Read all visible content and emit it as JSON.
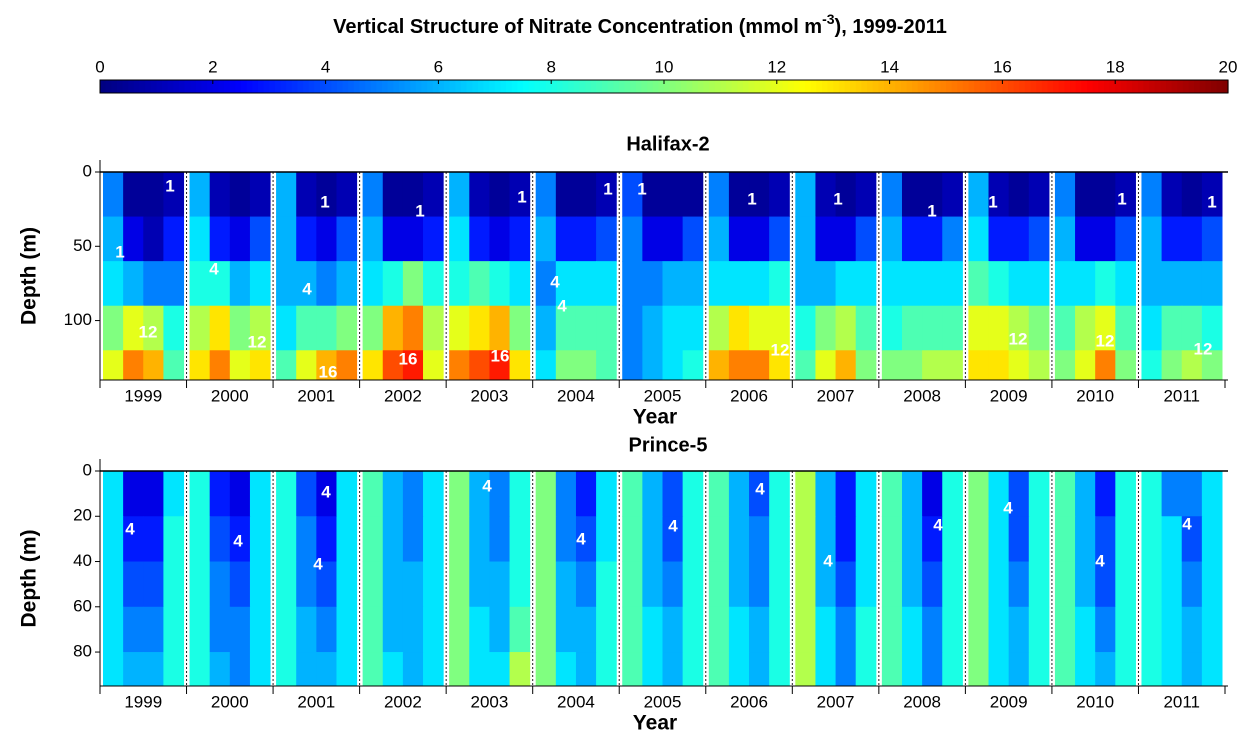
{
  "chart_data": {
    "type": "heatmap",
    "title": [
      "Vertical Structure  of Nitrate Concentration (mmol m",
      "-3",
      "), 1999-2011"
    ],
    "colormap": "jet",
    "colorbar": {
      "clim": [
        0,
        20
      ],
      "ticks": [
        0,
        2,
        4,
        6,
        8,
        10,
        12,
        14,
        16,
        18,
        20
      ]
    },
    "panels": [
      {
        "title": "Halifax-2",
        "xlabel": "Year",
        "ylabel": "Depth (m)",
        "categories": [
          "1999",
          "2000",
          "2001",
          "2002",
          "2003",
          "2004",
          "2005",
          "2006",
          "2007",
          "2008",
          "2009",
          "2010",
          "2011"
        ],
        "ylim": [
          0,
          140
        ],
        "yticks": [
          0,
          50,
          100
        ],
        "y_inverted": true,
        "depth_bins": [
          0,
          30,
          60,
          90,
          120,
          140
        ],
        "values": [
          [
            [
              5,
              0.5,
              0.5,
              1
            ],
            [
              6,
              2,
              1,
              3
            ],
            [
              7,
              6,
              5,
              5
            ],
            [
              10,
              12,
              11,
              8
            ],
            [
              12,
              15,
              14,
              9
            ]
          ],
          [
            [
              6,
              1,
              0.5,
              1
            ],
            [
              7,
              3,
              2,
              4
            ],
            [
              8,
              8,
              6,
              7
            ],
            [
              11,
              13,
              10,
              11
            ],
            [
              13,
              15,
              12,
              13
            ]
          ],
          [
            [
              6,
              1,
              0.5,
              1
            ],
            [
              6,
              3,
              2,
              4
            ],
            [
              6,
              6,
              5,
              6
            ],
            [
              7,
              9,
              9,
              10
            ],
            [
              9,
              12,
              14,
              15
            ]
          ],
          [
            [
              5,
              0.5,
              0.5,
              1
            ],
            [
              6,
              2,
              2,
              3
            ],
            [
              7,
              8,
              10,
              8
            ],
            [
              10,
              14,
              15,
              11
            ],
            [
              13,
              16,
              17,
              12
            ]
          ],
          [
            [
              6,
              1,
              0.5,
              1
            ],
            [
              7,
              3,
              2,
              3
            ],
            [
              8,
              9,
              8,
              7
            ],
            [
              12,
              13,
              14,
              10
            ],
            [
              15,
              16,
              17,
              13
            ]
          ],
          [
            [
              5,
              0.5,
              0.5,
              1
            ],
            [
              6,
              3,
              3,
              4
            ],
            [
              5,
              7,
              7,
              7
            ],
            [
              6,
              9,
              9,
              9
            ],
            [
              7,
              10,
              10,
              9
            ]
          ],
          [
            [
              4,
              0.5,
              0.5,
              0.5
            ],
            [
              5,
              2,
              2,
              4
            ],
            [
              5,
              5,
              6,
              6
            ],
            [
              5,
              6,
              7,
              7
            ],
            [
              5,
              6,
              7,
              8
            ]
          ],
          [
            [
              5,
              0.5,
              0.5,
              1
            ],
            [
              6,
              2,
              2,
              4
            ],
            [
              7,
              7,
              7,
              8
            ],
            [
              11,
              13,
              12,
              12
            ],
            [
              14,
              15,
              15,
              13
            ]
          ],
          [
            [
              6,
              1,
              0.5,
              1
            ],
            [
              6,
              2,
              2,
              4
            ],
            [
              6,
              6,
              7,
              7
            ],
            [
              8,
              10,
              11,
              9
            ],
            [
              9,
              12,
              14,
              10
            ]
          ],
          [
            [
              5,
              0.5,
              0.5,
              1
            ],
            [
              6,
              3,
              3,
              5
            ],
            [
              7,
              7,
              7,
              7
            ],
            [
              8,
              9,
              9,
              9
            ],
            [
              10,
              10,
              11,
              11
            ]
          ],
          [
            [
              6,
              1,
              0.5,
              1
            ],
            [
              7,
              3,
              3,
              4
            ],
            [
              9,
              8,
              7,
              7
            ],
            [
              12,
              12,
              11,
              10
            ],
            [
              13,
              13,
              12,
              11
            ]
          ],
          [
            [
              5,
              0.5,
              0.5,
              1
            ],
            [
              6,
              2,
              2,
              4
            ],
            [
              7,
              7,
              8,
              7
            ],
            [
              9,
              11,
              12,
              9
            ],
            [
              10,
              12,
              15,
              10
            ]
          ],
          [
            [
              5,
              1,
              0.5,
              1
            ],
            [
              6,
              3,
              3,
              4
            ],
            [
              6,
              6,
              6,
              6
            ],
            [
              7,
              9,
              9,
              8
            ],
            [
              8,
              10,
              11,
              10
            ]
          ]
        ],
        "contour_labels": [
          1,
          1,
          12,
          4,
          12,
          1,
          4,
          16,
          1,
          16,
          1,
          16,
          1,
          4,
          4,
          1,
          12,
          1,
          1,
          1,
          12,
          1,
          1,
          12,
          1,
          12
        ]
      },
      {
        "title": "Prince-5",
        "xlabel": "Year",
        "ylabel": "Depth (m)",
        "categories": [
          "1999",
          "2000",
          "2001",
          "2002",
          "2003",
          "2004",
          "2005",
          "2006",
          "2007",
          "2008",
          "2009",
          "2010",
          "2011"
        ],
        "ylim": [
          0,
          95
        ],
        "yticks": [
          0,
          20,
          40,
          60,
          80
        ],
        "y_inverted": true,
        "depth_bins": [
          0,
          20,
          40,
          60,
          80,
          95
        ],
        "values": [
          [
            [
              7,
              2,
              2,
              7
            ],
            [
              7,
              3,
              3,
              8
            ],
            [
              7,
              4,
              4,
              8
            ],
            [
              7,
              5,
              5,
              8
            ],
            [
              7,
              6,
              6,
              8
            ]
          ],
          [
            [
              8,
              3,
              2,
              7
            ],
            [
              8,
              4,
              3,
              7
            ],
            [
              8,
              5,
              4,
              7
            ],
            [
              8,
              5,
              5,
              7
            ],
            [
              8,
              6,
              5,
              7
            ]
          ],
          [
            [
              8,
              4,
              2,
              7
            ],
            [
              8,
              5,
              3,
              7
            ],
            [
              8,
              5,
              4,
              7
            ],
            [
              8,
              6,
              5,
              7
            ],
            [
              8,
              6,
              6,
              7
            ]
          ],
          [
            [
              9,
              6,
              5,
              7
            ],
            [
              9,
              6,
              5,
              7
            ],
            [
              9,
              6,
              6,
              7
            ],
            [
              9,
              6,
              6,
              7
            ],
            [
              9,
              7,
              6,
              7
            ]
          ],
          [
            [
              10,
              6,
              5,
              8
            ],
            [
              10,
              6,
              5,
              8
            ],
            [
              10,
              6,
              6,
              8
            ],
            [
              10,
              7,
              6,
              9
            ],
            [
              10,
              7,
              7,
              11
            ]
          ],
          [
            [
              10,
              5,
              3,
              7
            ],
            [
              10,
              5,
              4,
              7
            ],
            [
              10,
              6,
              5,
              8
            ],
            [
              10,
              6,
              6,
              8
            ],
            [
              10,
              7,
              6,
              8
            ]
          ],
          [
            [
              9,
              6,
              4,
              8
            ],
            [
              9,
              6,
              4,
              8
            ],
            [
              9,
              6,
              5,
              8
            ],
            [
              9,
              7,
              6,
              8
            ],
            [
              9,
              7,
              6,
              8
            ]
          ],
          [
            [
              9,
              6,
              4,
              8
            ],
            [
              9,
              6,
              5,
              8
            ],
            [
              9,
              6,
              5,
              8
            ],
            [
              9,
              7,
              6,
              8
            ],
            [
              9,
              7,
              6,
              8
            ]
          ],
          [
            [
              11,
              6,
              3,
              7
            ],
            [
              11,
              6,
              3,
              7
            ],
            [
              11,
              6,
              4,
              7
            ],
            [
              11,
              7,
              5,
              8
            ],
            [
              11,
              7,
              5,
              8
            ]
          ],
          [
            [
              9,
              6,
              2,
              8
            ],
            [
              9,
              6,
              3,
              8
            ],
            [
              9,
              6,
              4,
              8
            ],
            [
              9,
              7,
              5,
              8
            ],
            [
              9,
              7,
              5,
              8
            ]
          ],
          [
            [
              10,
              7,
              4,
              8
            ],
            [
              10,
              7,
              4,
              8
            ],
            [
              10,
              7,
              5,
              8
            ],
            [
              10,
              7,
              6,
              8
            ],
            [
              10,
              7,
              6,
              8
            ]
          ],
          [
            [
              9,
              6,
              3,
              8
            ],
            [
              9,
              6,
              4,
              8
            ],
            [
              9,
              6,
              4,
              8
            ],
            [
              9,
              7,
              5,
              8
            ],
            [
              9,
              7,
              6,
              8
            ]
          ],
          [
            [
              8,
              5,
              5,
              7
            ],
            [
              8,
              7,
              4,
              7
            ],
            [
              8,
              7,
              5,
              7
            ],
            [
              8,
              7,
              6,
              7
            ],
            [
              8,
              7,
              6,
              7
            ]
          ]
        ],
        "contour_labels": [
          4,
          4,
          4,
          4,
          4,
          4,
          4,
          4,
          4,
          4,
          4,
          4,
          4
        ]
      }
    ]
  }
}
